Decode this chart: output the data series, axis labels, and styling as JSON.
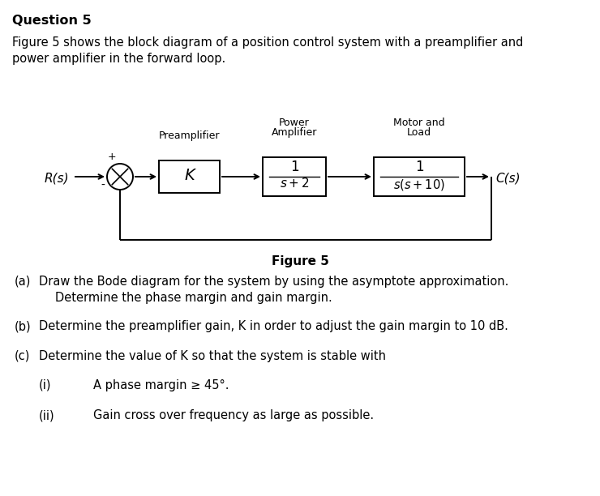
{
  "title": "Question 5",
  "intro_line1": "Figure 5 shows the block diagram of a position control system with a preamplifier and",
  "intro_line2": "power amplifier in the forward loop.",
  "fig_caption": "Figure 5",
  "label_Rs": "R(s)",
  "label_Cs": "C(s)",
  "label_plus": "+",
  "label_minus": "-",
  "label_preamplifier": "Preamplifier",
  "label_power_amp": "Power\nAmplifier",
  "label_motor": "Motor and\nLoad",
  "block_K": "K",
  "bg_color": "#ffffff",
  "text_color": "#000000",
  "figsize": [
    7.4,
    6.12
  ],
  "dpi": 100
}
